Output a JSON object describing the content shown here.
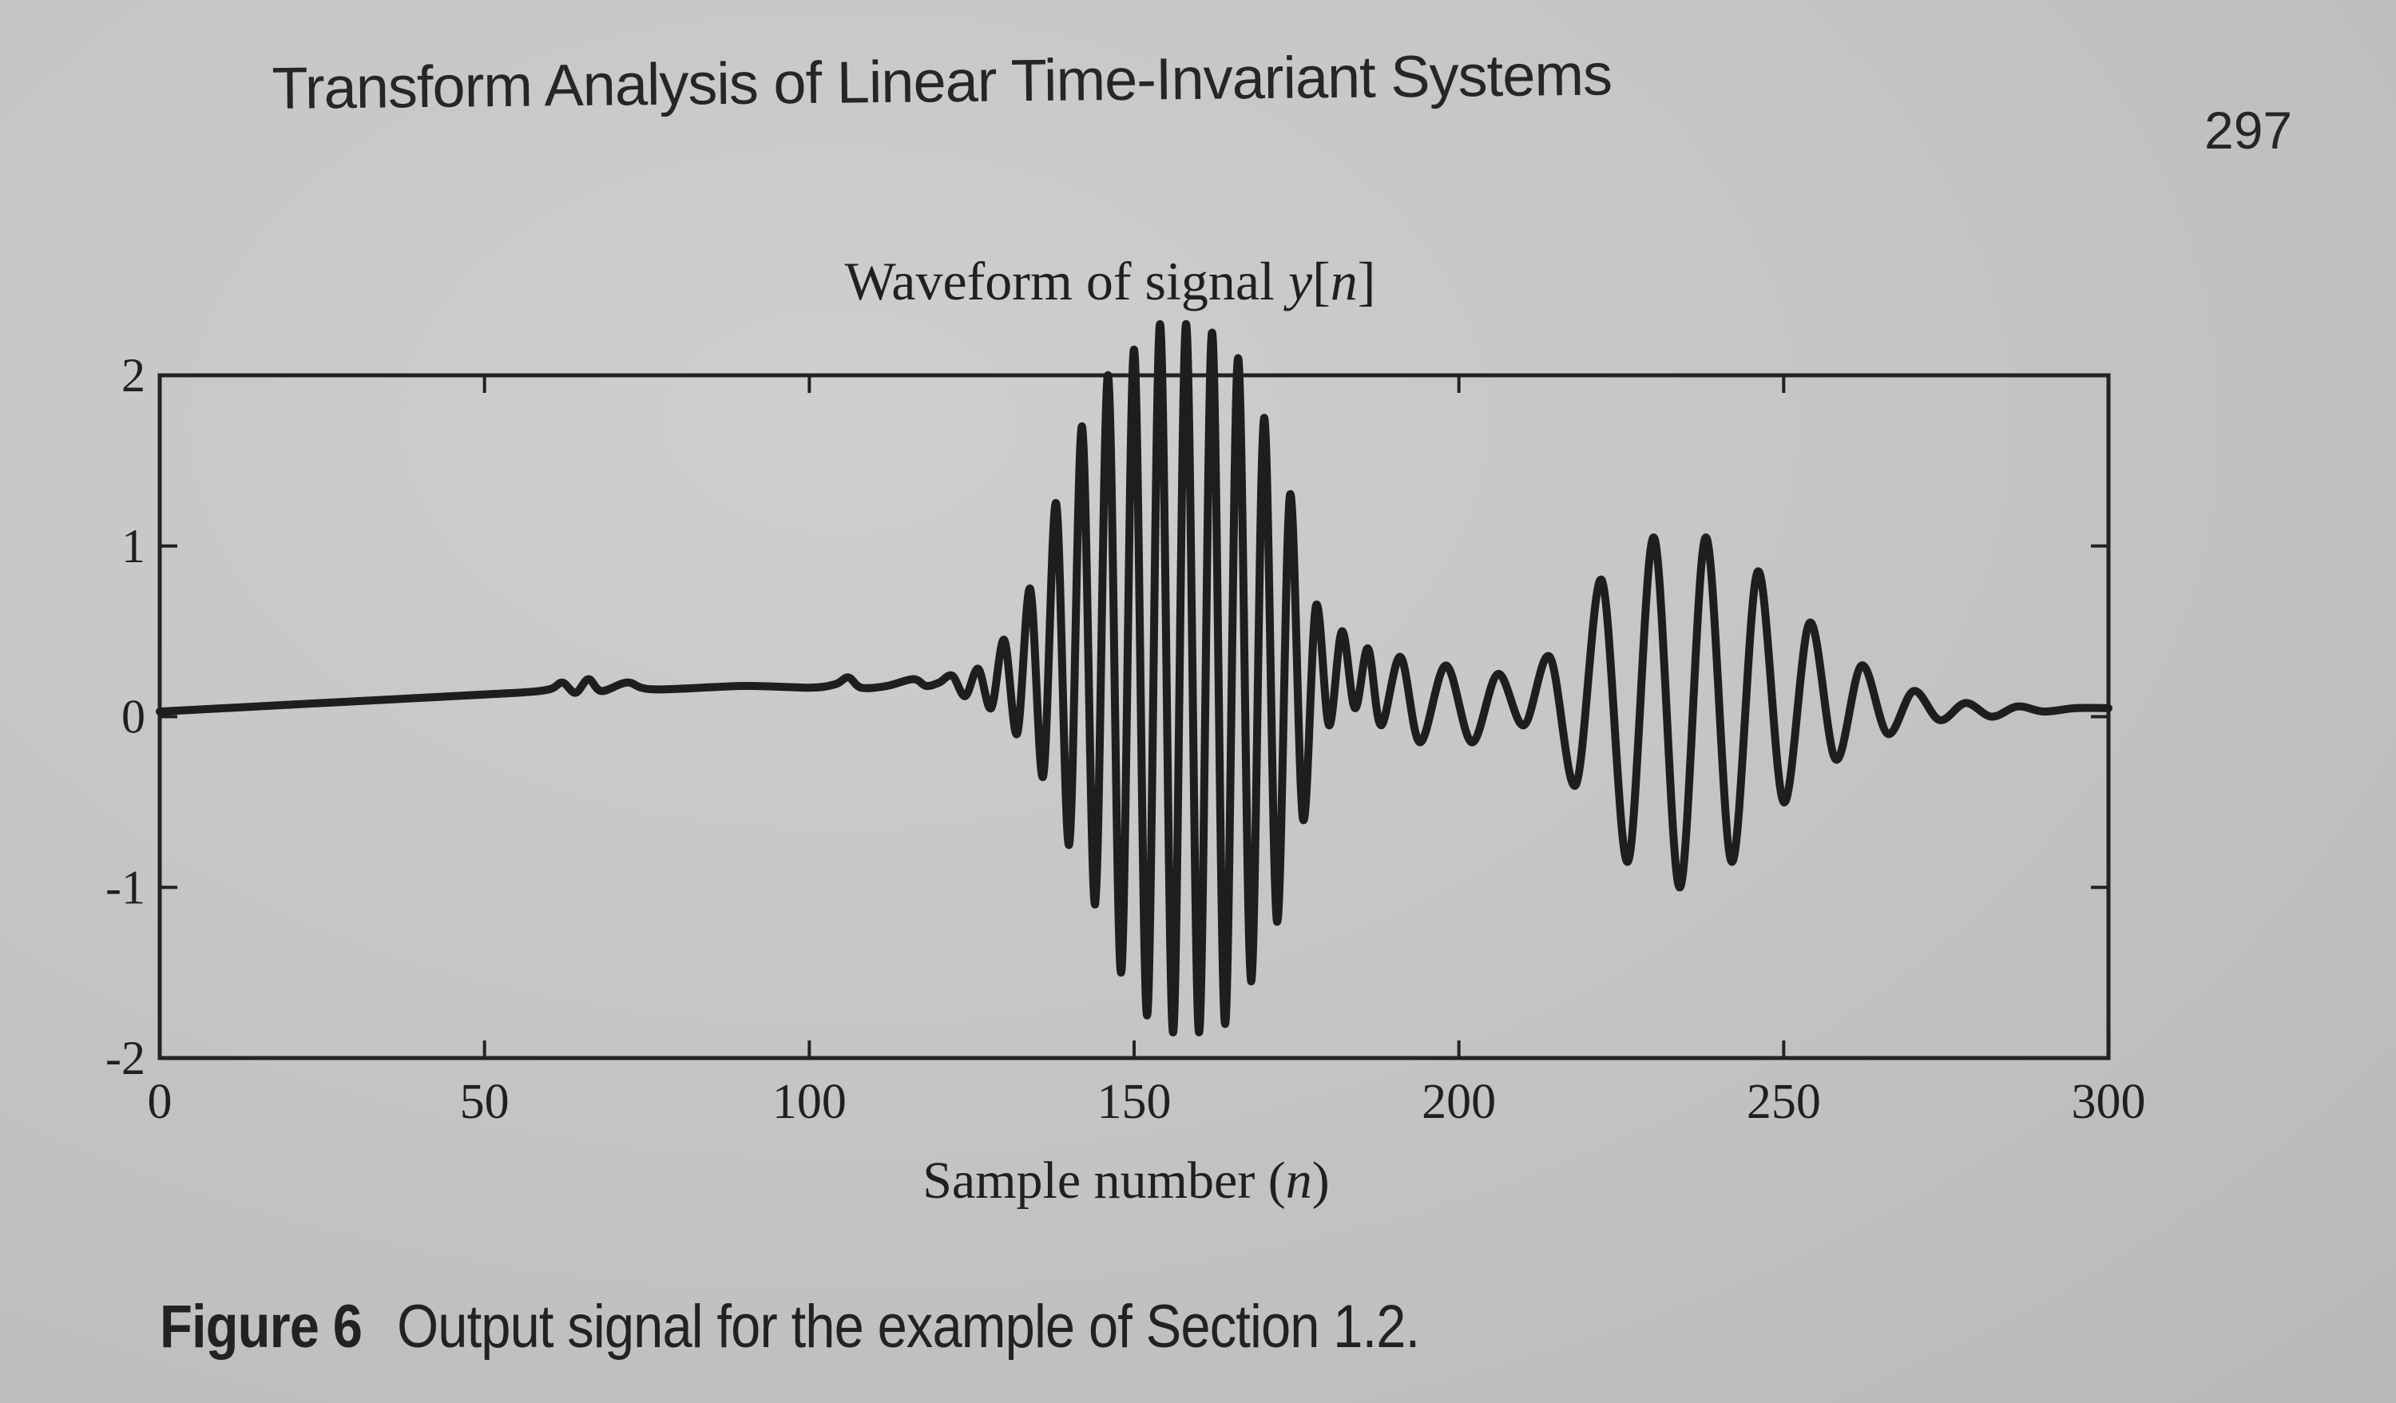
{
  "page": {
    "running_head": "Transform Analysis of Linear Time-Invariant Systems",
    "page_number": "297"
  },
  "caption": {
    "label": "Figure 6",
    "text": "Output signal for the example of Section 1.2."
  },
  "chart_data": {
    "type": "line",
    "title": "Waveform of signal y[n]",
    "title_prefix": "Waveform of signal ",
    "title_var": "y",
    "title_bracket_open": "[",
    "title_index": "n",
    "title_bracket_close": "]",
    "xlabel": "Sample number (n)",
    "xlabel_prefix": "Sample number (",
    "xlabel_var": "n",
    "xlabel_suffix": ")",
    "ylabel": "",
    "xlim": [
      0,
      300
    ],
    "ylim": [
      -2,
      2
    ],
    "xticks": [
      0,
      50,
      100,
      150,
      200,
      250,
      300
    ],
    "yticks": [
      -2,
      -1,
      0,
      1,
      2
    ],
    "xtick_labels": [
      "0",
      "50",
      "100",
      "150",
      "200",
      "250",
      "300"
    ],
    "ytick_labels": [
      "-2",
      "-1",
      "0",
      "1",
      "2"
    ],
    "grid": false,
    "legend": "none",
    "line_color": "#1e1e1e",
    "series": [
      {
        "values": [
          {
            "x": 0,
            "y": 0.03
          },
          {
            "x": 20,
            "y": 0.07
          },
          {
            "x": 40,
            "y": 0.11
          },
          {
            "x": 55,
            "y": 0.14
          },
          {
            "x": 60,
            "y": 0.16
          },
          {
            "x": 62,
            "y": 0.2
          },
          {
            "x": 64,
            "y": 0.14
          },
          {
            "x": 66,
            "y": 0.22
          },
          {
            "x": 68,
            "y": 0.15
          },
          {
            "x": 72,
            "y": 0.2
          },
          {
            "x": 76,
            "y": 0.16
          },
          {
            "x": 90,
            "y": 0.18
          },
          {
            "x": 100,
            "y": 0.17
          },
          {
            "x": 104,
            "y": 0.19
          },
          {
            "x": 106,
            "y": 0.23
          },
          {
            "x": 108,
            "y": 0.17
          },
          {
            "x": 112,
            "y": 0.18
          },
          {
            "x": 116,
            "y": 0.22
          },
          {
            "x": 118,
            "y": 0.18
          },
          {
            "x": 120,
            "y": 0.2
          },
          {
            "x": 122,
            "y": 0.24
          },
          {
            "x": 124,
            "y": 0.12
          },
          {
            "x": 126,
            "y": 0.28
          },
          {
            "x": 128,
            "y": 0.05
          },
          {
            "x": 130,
            "y": 0.45
          },
          {
            "x": 132,
            "y": -0.1
          },
          {
            "x": 134,
            "y": 0.75
          },
          {
            "x": 136,
            "y": -0.35
          },
          {
            "x": 138,
            "y": 1.25
          },
          {
            "x": 140,
            "y": -0.75
          },
          {
            "x": 142,
            "y": 1.7
          },
          {
            "x": 144,
            "y": -1.1
          },
          {
            "x": 146,
            "y": 2.0
          },
          {
            "x": 148,
            "y": -1.5
          },
          {
            "x": 150,
            "y": 2.15
          },
          {
            "x": 152,
            "y": -1.75
          },
          {
            "x": 154,
            "y": 2.3
          },
          {
            "x": 156,
            "y": -1.85
          },
          {
            "x": 158,
            "y": 2.3
          },
          {
            "x": 160,
            "y": -1.85
          },
          {
            "x": 162,
            "y": 2.25
          },
          {
            "x": 164,
            "y": -1.8
          },
          {
            "x": 166,
            "y": 2.1
          },
          {
            "x": 168,
            "y": -1.55
          },
          {
            "x": 170,
            "y": 1.75
          },
          {
            "x": 172,
            "y": -1.2
          },
          {
            "x": 174,
            "y": 1.3
          },
          {
            "x": 176,
            "y": -0.6
          },
          {
            "x": 178,
            "y": 0.65
          },
          {
            "x": 180,
            "y": -0.05
          },
          {
            "x": 182,
            "y": 0.5
          },
          {
            "x": 184,
            "y": 0.05
          },
          {
            "x": 186,
            "y": 0.4
          },
          {
            "x": 188,
            "y": -0.05
          },
          {
            "x": 191,
            "y": 0.35
          },
          {
            "x": 194,
            "y": -0.15
          },
          {
            "x": 198,
            "y": 0.3
          },
          {
            "x": 202,
            "y": -0.15
          },
          {
            "x": 206,
            "y": 0.25
          },
          {
            "x": 210,
            "y": -0.05
          },
          {
            "x": 214,
            "y": 0.35
          },
          {
            "x": 218,
            "y": -0.4
          },
          {
            "x": 222,
            "y": 0.8
          },
          {
            "x": 226,
            "y": -0.85
          },
          {
            "x": 230,
            "y": 1.05
          },
          {
            "x": 234,
            "y": -1.0
          },
          {
            "x": 238,
            "y": 1.05
          },
          {
            "x": 242,
            "y": -0.85
          },
          {
            "x": 246,
            "y": 0.85
          },
          {
            "x": 250,
            "y": -0.5
          },
          {
            "x": 254,
            "y": 0.55
          },
          {
            "x": 258,
            "y": -0.25
          },
          {
            "x": 262,
            "y": 0.3
          },
          {
            "x": 266,
            "y": -0.1
          },
          {
            "x": 270,
            "y": 0.15
          },
          {
            "x": 274,
            "y": -0.02
          },
          {
            "x": 278,
            "y": 0.08
          },
          {
            "x": 282,
            "y": 0.0
          },
          {
            "x": 286,
            "y": 0.06
          },
          {
            "x": 290,
            "y": 0.03
          },
          {
            "x": 295,
            "y": 0.05
          },
          {
            "x": 300,
            "y": 0.05
          }
        ]
      }
    ]
  }
}
